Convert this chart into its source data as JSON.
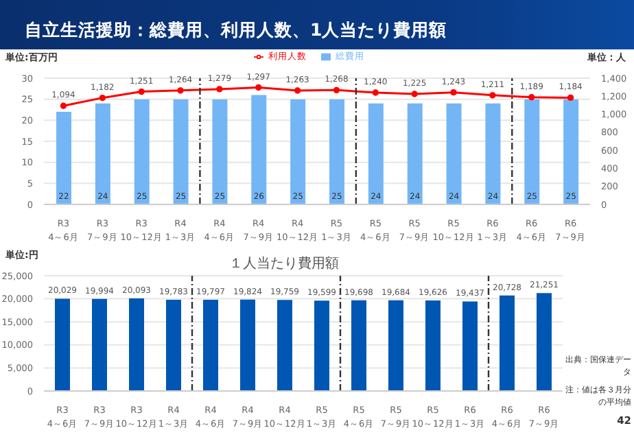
{
  "chart_data": [
    {
      "type": "bar",
      "title": "自立生活援助：総費用、利用人数、1人当たり費用額",
      "ylabel": "単位:百万円",
      "y2label": "単位：人",
      "categories": [
        "R3\n4～6月",
        "R3\n7～9月",
        "R3\n10～12月",
        "R4\n1～3月",
        "R4\n4～6月",
        "R4\n7～9月",
        "R4\n10～12月",
        "R5\n1～3月",
        "R5\n4～6月",
        "R5\n7～9月",
        "R5\n10～12月",
        "R6\n1～3月",
        "R6\n4～6月",
        "R6\n7～9月"
      ],
      "series": [
        {
          "name": "総費用",
          "color": "#74b6f5",
          "values": [
            22,
            24,
            25,
            25,
            25,
            26,
            25,
            25,
            24,
            24,
            24,
            24,
            25,
            25
          ]
        },
        {
          "name": "利用人数",
          "type": "line",
          "axis": "y2",
          "color": "#ff0000",
          "marker": "circle",
          "values": [
            1094,
            1182,
            1251,
            1264,
            1279,
            1297,
            1263,
            1268,
            1240,
            1225,
            1243,
            1211,
            1189,
            1184
          ],
          "value_labels": [
            "1,094",
            "1,182",
            "1,251",
            "1,264",
            "1,279",
            "1,297",
            "1,263",
            "1,268",
            "1,240",
            "1,225",
            "1,243",
            "1,211",
            "1,189",
            "1,184"
          ]
        }
      ],
      "ylim": [
        0,
        30
      ],
      "yticks": [
        0,
        5,
        10,
        15,
        20,
        25,
        30
      ],
      "y2lim": [
        0,
        1400
      ],
      "y2ticks": [
        0,
        200,
        400,
        600,
        800,
        {
          "value": 1000,
          "label": "1,000"
        },
        {
          "value": 1200,
          "label": "1,200"
        },
        {
          "value": 1400,
          "label": "1,400"
        }
      ],
      "data_labels": true,
      "grid": "y",
      "legend": "top"
    },
    {
      "type": "bar",
      "title": "１人当たり費用額",
      "ylabel": "単位:円",
      "categories": [
        "R3\n4～6月",
        "R3\n7～9月",
        "R3\n10～12月",
        "R4\n1～3月",
        "R4\n4～6月",
        "R4\n7～9月",
        "R4\n10～12月",
        "R5\n1～3月",
        "R5\n4～6月",
        "R5\n7～9月",
        "R5\n10～12月",
        "R6\n1～3月",
        "R6\n4～6月",
        "R6\n7～9月"
      ],
      "values": [
        20029,
        19994,
        20093,
        19783,
        19797,
        19824,
        19759,
        19599,
        19698,
        19684,
        19626,
        19437,
        20728,
        21251
      ],
      "color": "#0057b3",
      "value_labels": [
        "20,029",
        "19,994",
        "20,093",
        "19,783",
        "19,797",
        "19,824",
        "19,759",
        "19,599",
        "19,698",
        "19,684",
        "19,626",
        "19,437",
        "20,728",
        "21,251"
      ],
      "ylim": [
        0,
        25000
      ],
      "yticks": [
        0,
        {
          "value": 5000,
          "label": "5,000"
        },
        {
          "value": 10000,
          "label": "10,000"
        },
        {
          "value": 15000,
          "label": "15,000"
        },
        {
          "value": 20000,
          "label": "20,000"
        },
        {
          "value": 25000,
          "label": "25,000"
        }
      ],
      "grid": "y",
      "annotations": [
        "出典：国保連データ",
        "注：値は各３月分の平均値",
        "42"
      ]
    }
  ]
}
